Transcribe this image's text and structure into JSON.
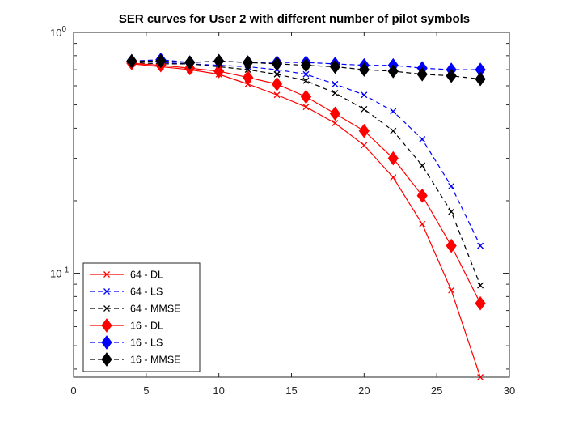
{
  "chart_data": {
    "type": "line",
    "title": "SER curves for User 2 with different number of pilot symbols",
    "xlabel": "",
    "ylabel": "",
    "xlim": [
      0,
      30
    ],
    "ylim": [
      0.037,
      1
    ],
    "yscale": "log",
    "x_ticks": [
      0,
      5,
      10,
      15,
      20,
      25,
      30
    ],
    "y_ticks": [
      {
        "value": 0.1,
        "base": "10",
        "exp": "-1"
      },
      {
        "value": 1,
        "base": "10",
        "exp": "0"
      }
    ],
    "grid": false,
    "legend_position": "bottom-left",
    "x": [
      4,
      6,
      8,
      10,
      12,
      14,
      16,
      18,
      20,
      22,
      24,
      26,
      28
    ],
    "series": [
      {
        "name": "64 - DL",
        "color": "#ff0000",
        "line_style": "solid",
        "marker": "x",
        "values": [
          0.74,
          0.72,
          0.7,
          0.67,
          0.61,
          0.55,
          0.49,
          0.42,
          0.34,
          0.25,
          0.16,
          0.085,
          0.037
        ]
      },
      {
        "name": "64 - LS",
        "color": "#0000ff",
        "line_style": "dashed",
        "marker": "x",
        "values": [
          0.76,
          0.75,
          0.74,
          0.73,
          0.72,
          0.7,
          0.67,
          0.61,
          0.55,
          0.47,
          0.36,
          0.23,
          0.13
        ]
      },
      {
        "name": "64 - MMSE",
        "color": "#000000",
        "line_style": "dashed",
        "marker": "x",
        "values": [
          0.75,
          0.74,
          0.74,
          0.72,
          0.7,
          0.67,
          0.63,
          0.56,
          0.48,
          0.39,
          0.28,
          0.18,
          0.089
        ]
      },
      {
        "name": "16 - DL",
        "color": "#ff0000",
        "line_style": "solid",
        "marker": "diamond",
        "values": [
          0.745,
          0.73,
          0.71,
          0.69,
          0.65,
          0.61,
          0.54,
          0.46,
          0.39,
          0.3,
          0.21,
          0.13,
          0.075
        ]
      },
      {
        "name": "16 - LS",
        "color": "#0000ff",
        "line_style": "dashed",
        "marker": "diamond",
        "values": [
          0.76,
          0.77,
          0.75,
          0.76,
          0.75,
          0.75,
          0.75,
          0.74,
          0.73,
          0.73,
          0.71,
          0.7,
          0.7
        ]
      },
      {
        "name": "16 - MMSE",
        "color": "#000000",
        "line_style": "dashed",
        "marker": "diamond",
        "values": [
          0.76,
          0.76,
          0.75,
          0.76,
          0.75,
          0.74,
          0.73,
          0.72,
          0.7,
          0.69,
          0.67,
          0.66,
          0.64
        ]
      }
    ]
  }
}
